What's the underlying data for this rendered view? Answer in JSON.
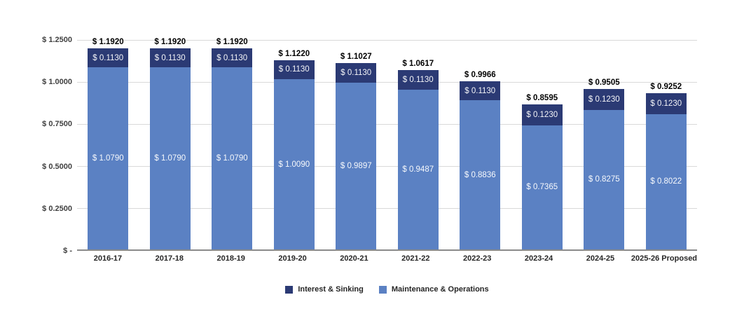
{
  "chart_data": {
    "type": "bar",
    "stacked": true,
    "grid": true,
    "legend_position": "bottom",
    "categories": [
      "2016-17",
      "2017-18",
      "2018-19",
      "2019-20",
      "2020-21",
      "2021-22",
      "2022-23",
      "2023-24",
      "2024-25",
      "2025-26 Proposed"
    ],
    "series": [
      {
        "name": "Interest & Sinking",
        "color": "#2b3a74",
        "values": [
          0.113,
          0.113,
          0.113,
          0.113,
          0.113,
          0.113,
          0.113,
          0.123,
          0.123,
          0.123
        ],
        "labels": [
          "$ 0.1130",
          "$ 0.1130",
          "$ 0.1130",
          "$ 0.1130",
          "$ 0.1130",
          "$ 0.1130",
          "$ 0.1130",
          "$ 0.1230",
          "$ 0.1230",
          "$ 0.1230"
        ]
      },
      {
        "name": "Maintenance & Operations",
        "color": "#5b81c3",
        "values": [
          1.079,
          1.079,
          1.079,
          1.009,
          0.9897,
          0.9487,
          0.8836,
          0.7365,
          0.8275,
          0.8022
        ],
        "labels": [
          "$ 1.0790",
          "$ 1.0790",
          "$ 1.0790",
          "$ 1.0090",
          "$ 0.9897",
          "$ 0.9487",
          "$ 0.8836",
          "$ 0.7365",
          "$ 0.8275",
          "$ 0.8022"
        ]
      }
    ],
    "totals": [
      1.192,
      1.192,
      1.192,
      1.122,
      1.1027,
      1.0617,
      0.9966,
      0.8595,
      0.9505,
      0.9252
    ],
    "total_labels": [
      "$ 1.1920",
      "$ 1.1920",
      "$ 1.1920",
      "$ 1.1220",
      "$ 1.1027",
      "$ 1.0617",
      "$ 0.9966",
      "$ 0.8595",
      "$ 0.9505",
      "$ 0.9252"
    ],
    "y_axis": {
      "min": 0,
      "max": 1.25,
      "ticks": [
        {
          "value": 1.25,
          "label": "$ 1.2500"
        },
        {
          "value": 1.0,
          "label": "$ 1.0000"
        },
        {
          "value": 0.75,
          "label": "$ 0.7500"
        },
        {
          "value": 0.5,
          "label": "$ 0.5000"
        },
        {
          "value": 0.25,
          "label": "$ 0.2500"
        },
        {
          "value": 0.0,
          "label": "$ -"
        }
      ]
    },
    "colors": {
      "gridline": "#d9d9d9",
      "axis_line": "#8a8a8a",
      "total_label_text": "#000000",
      "segment_label_text": "#ffffff"
    }
  },
  "legend": {
    "items": [
      {
        "label": "Interest & Sinking",
        "color": "#2b3a74"
      },
      {
        "label": "Maintenance & Operations",
        "color": "#5b81c3"
      }
    ]
  }
}
